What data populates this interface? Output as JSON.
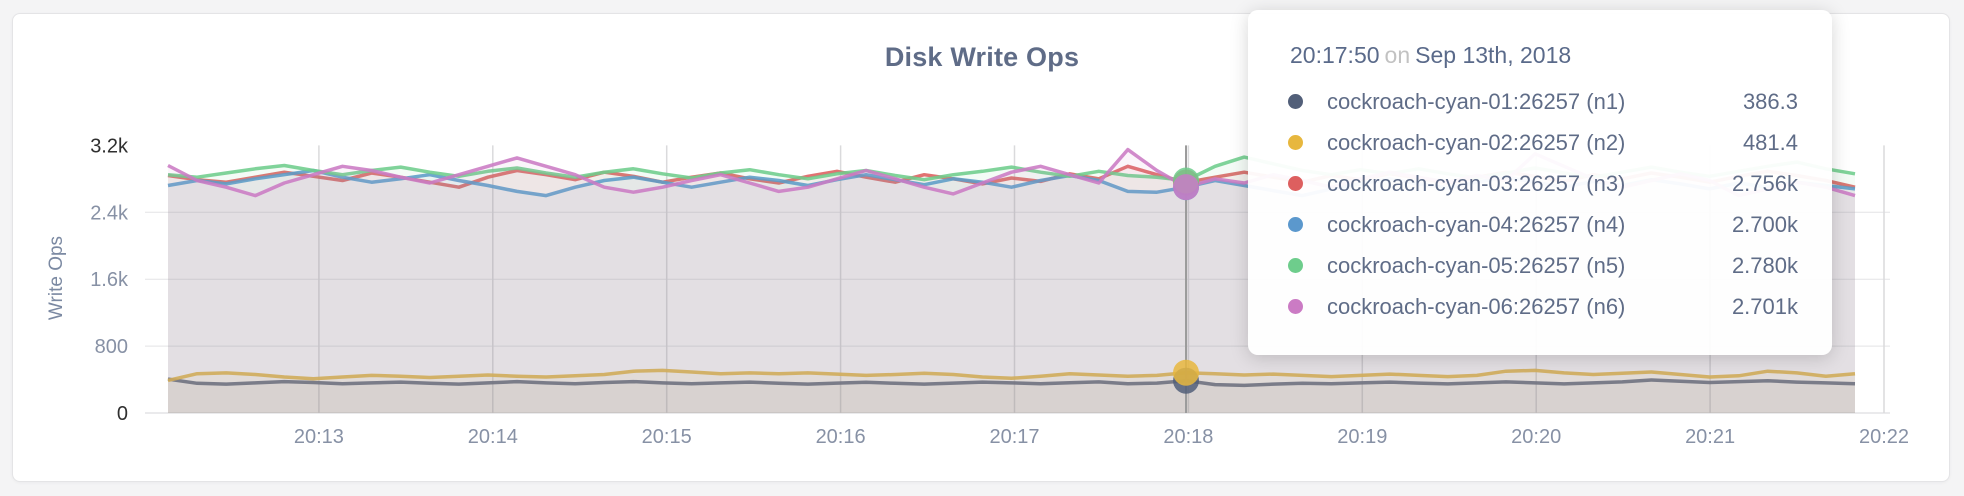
{
  "chart_data": {
    "type": "line",
    "title": "Disk Write Ops",
    "ylabel": "Write Ops",
    "xlabel": "",
    "ylim": [
      0,
      3200
    ],
    "grid": true,
    "x_start_time": "20:12:00",
    "x_interval_seconds": 10,
    "x_ticks": [
      "20:13",
      "20:14",
      "20:15",
      "20:16",
      "20:17",
      "20:18",
      "20:19",
      "20:20",
      "20:21",
      "20:22"
    ],
    "y_ticks": [
      {
        "label": "0",
        "value": 0,
        "emph": true
      },
      {
        "label": "800",
        "value": 800,
        "emph": false
      },
      {
        "label": "1.6k",
        "value": 1600,
        "emph": false
      },
      {
        "label": "2.4k",
        "value": 2400,
        "emph": false
      },
      {
        "label": "3.2k",
        "value": 3200,
        "emph": true
      }
    ],
    "hover_index": 35,
    "series": [
      {
        "name": "cockroach-cyan-01:26257 (n1)",
        "color": "#525f79",
        "values": [
          405,
          355,
          345,
          360,
          375,
          365,
          350,
          360,
          370,
          355,
          345,
          360,
          375,
          360,
          350,
          365,
          375,
          360,
          350,
          360,
          370,
          355,
          345,
          358,
          368,
          355,
          345,
          358,
          370,
          360,
          350,
          362,
          372,
          350,
          358,
          386.3,
          340,
          330,
          345,
          355,
          350,
          360,
          370,
          358,
          348,
          360,
          372,
          360,
          348,
          360,
          372,
          395,
          380,
          365,
          375,
          385,
          370,
          360,
          350
        ]
      },
      {
        "name": "cockroach-cyan-02:26257 (n2)",
        "color": "#e7b73e",
        "values": [
          390,
          470,
          480,
          460,
          430,
          410,
          430,
          450,
          440,
          425,
          440,
          455,
          440,
          430,
          445,
          460,
          500,
          510,
          490,
          470,
          480,
          470,
          480,
          465,
          450,
          460,
          475,
          460,
          430,
          415,
          440,
          470,
          455,
          440,
          450,
          481.4,
          470,
          455,
          465,
          450,
          435,
          450,
          465,
          450,
          435,
          450,
          500,
          510,
          480,
          460,
          475,
          490,
          460,
          430,
          445,
          500,
          480,
          440,
          470
        ]
      },
      {
        "name": "cockroach-cyan-03:26257 (n3)",
        "color": "#dd5f5f",
        "values": [
          2840,
          2790,
          2760,
          2820,
          2880,
          2830,
          2780,
          2870,
          2820,
          2760,
          2700,
          2820,
          2900,
          2850,
          2790,
          2880,
          2830,
          2760,
          2820,
          2870,
          2800,
          2750,
          2830,
          2890,
          2820,
          2760,
          2850,
          2800,
          2740,
          2810,
          2770,
          2860,
          2800,
          2950,
          2850,
          2756,
          2820,
          2880,
          2820,
          2760,
          2840,
          2790,
          2860,
          2810,
          2750,
          2820,
          2880,
          2830,
          2770,
          2850,
          2800,
          2870,
          2820,
          2760,
          2830,
          2890,
          2840,
          2780,
          2700
        ]
      },
      {
        "name": "cockroach-cyan-04:26257 (n4)",
        "color": "#5b98cd",
        "values": [
          2720,
          2780,
          2740,
          2800,
          2850,
          2900,
          2820,
          2760,
          2800,
          2850,
          2780,
          2720,
          2650,
          2600,
          2700,
          2780,
          2820,
          2760,
          2700,
          2760,
          2820,
          2780,
          2720,
          2790,
          2850,
          2790,
          2730,
          2800,
          2760,
          2700,
          2780,
          2840,
          2780,
          2650,
          2640,
          2700,
          2780,
          2720,
          2660,
          2600,
          2680,
          2740,
          2800,
          2740,
          2690,
          2760,
          2820,
          2760,
          2700,
          2770,
          2720,
          2790,
          2740,
          2680,
          2750,
          2700,
          2760,
          2720,
          2680
        ]
      },
      {
        "name": "cockroach-cyan-05:26257 (n5)",
        "color": "#6ecd8c",
        "values": [
          2850,
          2820,
          2870,
          2920,
          2960,
          2900,
          2850,
          2900,
          2940,
          2880,
          2830,
          2890,
          2930,
          2870,
          2820,
          2880,
          2920,
          2860,
          2810,
          2870,
          2910,
          2850,
          2800,
          2860,
          2900,
          2840,
          2790,
          2850,
          2890,
          2940,
          2880,
          2830,
          2890,
          2840,
          2820,
          2780,
          2950,
          3060,
          2980,
          2900,
          2850,
          2910,
          2860,
          2920,
          2860,
          2810,
          2870,
          2930,
          2870,
          2820,
          2880,
          2940,
          2880,
          2830,
          2890,
          2950,
          3000,
          2920,
          2860
        ]
      },
      {
        "name": "cockroach-cyan-06:26257 (n6)",
        "color": "#cb7bc4",
        "values": [
          2960,
          2780,
          2700,
          2600,
          2750,
          2850,
          2950,
          2900,
          2820,
          2750,
          2850,
          2950,
          3050,
          2950,
          2850,
          2700,
          2640,
          2700,
          2780,
          2850,
          2750,
          2650,
          2700,
          2800,
          2900,
          2800,
          2700,
          2620,
          2750,
          2880,
          2950,
          2850,
          2750,
          3150,
          2900,
          2701,
          2800,
          2750,
          2850,
          2780,
          2700,
          2800,
          2880,
          2820,
          2760,
          2840,
          2780,
          3100,
          2950,
          2800,
          2700,
          2780,
          2860,
          2780,
          2600,
          2680,
          2760,
          2700,
          2600
        ]
      }
    ]
  },
  "tooltip": {
    "time": "20:17:50",
    "on_word": "on",
    "date": "Sep 13th, 2018",
    "rows": [
      {
        "label": "cockroach-cyan-01:26257 (n1)",
        "value": "386.3",
        "color": "#525f79"
      },
      {
        "label": "cockroach-cyan-02:26257 (n2)",
        "value": "481.4",
        "color": "#e7b73e"
      },
      {
        "label": "cockroach-cyan-03:26257 (n3)",
        "value": "2.756k",
        "color": "#dd5f5f"
      },
      {
        "label": "cockroach-cyan-04:26257 (n4)",
        "value": "2.700k",
        "color": "#5b98cd"
      },
      {
        "label": "cockroach-cyan-05:26257 (n5)",
        "value": "2.780k",
        "color": "#6ecd8c"
      },
      {
        "label": "cockroach-cyan-06:26257 (n6)",
        "value": "2.701k",
        "color": "#cb7bc4"
      }
    ]
  }
}
